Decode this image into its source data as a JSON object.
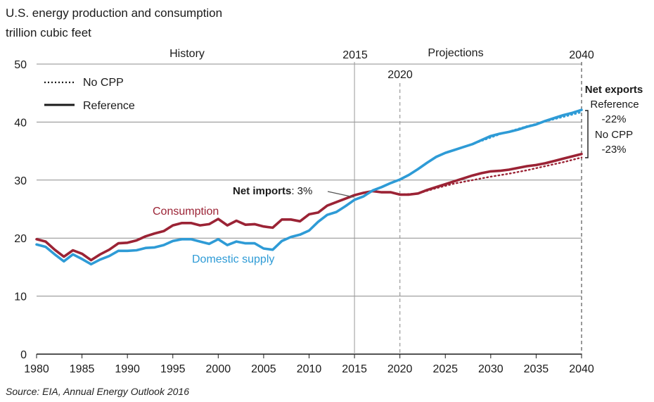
{
  "chart_data": {
    "type": "line",
    "title": "U.S. energy production and consumption",
    "ylabel": "trillion cubic feet",
    "xlim": [
      1980,
      2040
    ],
    "ylim": [
      0,
      50
    ],
    "x_ticks": [
      "1980",
      "1985",
      "1990",
      "1995",
      "2000",
      "2005",
      "2010",
      "2015",
      "2020",
      "2025",
      "2030",
      "2035",
      "2040"
    ],
    "y_ticks": [
      "0",
      "10",
      "20",
      "30",
      "40",
      "50"
    ],
    "grid": true,
    "legend": {
      "position": "top-left",
      "items": [
        {
          "style": "dotted",
          "label": "No CPP"
        },
        {
          "style": "solid",
          "label": "Reference"
        }
      ]
    },
    "period_labels": {
      "history": "History",
      "projections": "Projections"
    },
    "markers": {
      "y2015": "2015",
      "y2020": "2020",
      "y2040": "2040"
    },
    "colors": {
      "consumption": "#9b2335",
      "supply": "#2e9bd6",
      "grid": "#8c8c8c"
    },
    "series": [
      {
        "name": "Consumption",
        "scenario": "Reference",
        "color": "#9b2335",
        "style": "solid",
        "x": [
          1980,
          1981,
          1982,
          1983,
          1984,
          1985,
          1986,
          1987,
          1988,
          1989,
          1990,
          1991,
          1992,
          1993,
          1994,
          1995,
          1996,
          1997,
          1998,
          1999,
          2000,
          2001,
          2002,
          2003,
          2004,
          2005,
          2006,
          2007,
          2008,
          2009,
          2010,
          2011,
          2012,
          2013,
          2014,
          2015,
          2016,
          2017,
          2018,
          2019,
          2020,
          2021,
          2022,
          2023,
          2024,
          2025,
          2026,
          2027,
          2028,
          2029,
          2030,
          2031,
          2032,
          2033,
          2034,
          2035,
          2036,
          2037,
          2038,
          2039,
          2040
        ],
        "y": [
          19.8,
          19.4,
          18.0,
          16.8,
          17.9,
          17.3,
          16.2,
          17.2,
          18.0,
          19.1,
          19.2,
          19.6,
          20.3,
          20.8,
          21.2,
          22.2,
          22.6,
          22.6,
          22.2,
          22.4,
          23.3,
          22.2,
          23.0,
          22.3,
          22.4,
          22.0,
          21.8,
          23.2,
          23.2,
          22.9,
          24.1,
          24.4,
          25.6,
          26.2,
          26.8,
          27.4,
          27.8,
          28.1,
          27.9,
          27.9,
          27.5,
          27.5,
          27.7,
          28.3,
          28.8,
          29.3,
          29.8,
          30.3,
          30.8,
          31.2,
          31.5,
          31.6,
          31.8,
          32.1,
          32.4,
          32.6,
          32.9,
          33.3,
          33.7,
          34.1,
          34.5
        ]
      },
      {
        "name": "Consumption",
        "scenario": "No CPP",
        "color": "#9b2335",
        "style": "dotted",
        "x": [
          2020,
          2022,
          2024,
          2026,
          2028,
          2030,
          2032,
          2034,
          2036,
          2038,
          2040
        ],
        "y": [
          27.5,
          27.7,
          28.6,
          29.4,
          30.0,
          30.6,
          31.1,
          31.7,
          32.4,
          33.1,
          33.9
        ]
      },
      {
        "name": "Domestic supply",
        "scenario": "Reference",
        "color": "#2e9bd6",
        "style": "solid",
        "x": [
          1980,
          1981,
          1982,
          1983,
          1984,
          1985,
          1986,
          1987,
          1988,
          1989,
          1990,
          1991,
          1992,
          1993,
          1994,
          1995,
          1996,
          1997,
          1998,
          1999,
          2000,
          2001,
          2002,
          2003,
          2004,
          2005,
          2006,
          2007,
          2008,
          2009,
          2010,
          2011,
          2012,
          2013,
          2014,
          2015,
          2016,
          2017,
          2018,
          2019,
          2020,
          2021,
          2022,
          2023,
          2024,
          2025,
          2026,
          2027,
          2028,
          2029,
          2030,
          2031,
          2032,
          2033,
          2034,
          2035,
          2036,
          2037,
          2038,
          2039,
          2040
        ],
        "y": [
          18.9,
          18.5,
          17.2,
          16.0,
          17.2,
          16.4,
          15.5,
          16.3,
          16.9,
          17.8,
          17.8,
          17.9,
          18.3,
          18.4,
          18.8,
          19.5,
          19.8,
          19.8,
          19.4,
          19.0,
          19.8,
          18.8,
          19.4,
          19.1,
          19.1,
          18.2,
          18.0,
          19.5,
          20.2,
          20.6,
          21.3,
          22.8,
          24.0,
          24.5,
          25.5,
          26.6,
          27.2,
          28.2,
          28.8,
          29.5,
          30.1,
          30.9,
          31.9,
          33.0,
          34.0,
          34.7,
          35.2,
          35.7,
          36.2,
          36.9,
          37.6,
          38.0,
          38.3,
          38.7,
          39.2,
          39.6,
          40.2,
          40.7,
          41.2,
          41.6,
          42.1
        ]
      },
      {
        "name": "Domestic supply",
        "scenario": "No CPP",
        "color": "#2e9bd6",
        "style": "dotted",
        "x": [
          2025,
          2028,
          2031,
          2034,
          2037,
          2040
        ],
        "y": [
          34.7,
          36.2,
          37.9,
          39.3,
          40.5,
          41.7
        ]
      }
    ],
    "labels": {
      "consumption": "Consumption",
      "supply": "Domestic supply",
      "net_imports_bold": "Net imports",
      "net_imports_value": ": 3%",
      "net_exports": "Net exports",
      "reference": "Reference",
      "reference_pct": "-22%",
      "nocpp": "No CPP",
      "nocpp_pct": "-23%"
    },
    "source": "Source:  EIA, Annual Energy Outlook 2016"
  }
}
